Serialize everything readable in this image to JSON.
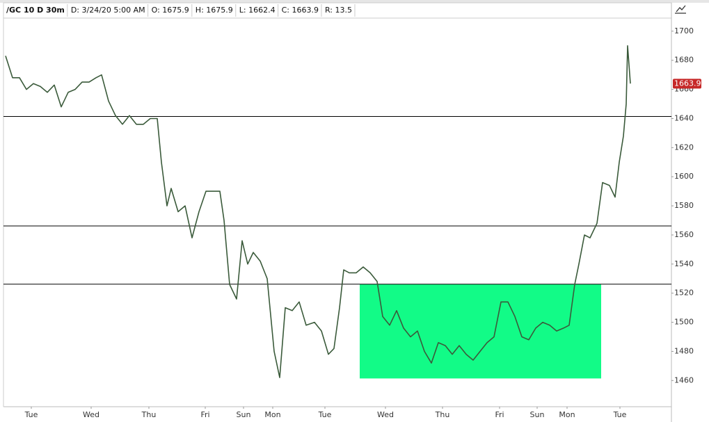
{
  "chart_data": {
    "type": "line",
    "header": [
      "/GC 10 D 30m",
      "D: 3/24/20 5:00 AM",
      "O: 1675.9",
      "H: 1675.9",
      "L: 1662.4",
      "C: 1663.9",
      "R: 13.5"
    ],
    "x": [
      8,
      18,
      28,
      38,
      48,
      58,
      68,
      78,
      88,
      98,
      108,
      118,
      128,
      138,
      146,
      156,
      166,
      176,
      186,
      196,
      206,
      216,
      226,
      232,
      240,
      246,
      256,
      266,
      276,
      286,
      296,
      306,
      316,
      322,
      330,
      340,
      348,
      356,
      364,
      374,
      384,
      394,
      402,
      410,
      420,
      430,
      440,
      452,
      462,
      472,
      480,
      488,
      494,
      502,
      512,
      522,
      532,
      542,
      550,
      560,
      570,
      580,
      590,
      600,
      610,
      620,
      630,
      640,
      650,
      660,
      670,
      680,
      690,
      700,
      710,
      720,
      730,
      740,
      750,
      760,
      770,
      780,
      790,
      800,
      810,
      818,
      826,
      832,
      840,
      848,
      858,
      866,
      876,
      884,
      890,
      896,
      900,
      902,
      906
    ],
    "series": [
      {
        "name": "/GC",
        "color": "#3a5a3a",
        "values": [
          1683,
          1668,
          1668,
          1660,
          1664,
          1662,
          1658,
          1663,
          1648,
          1658,
          1660,
          1665,
          1665,
          1668,
          1670,
          1652,
          1642,
          1636,
          1642,
          1636,
          1636,
          1640,
          1640,
          1610,
          1580,
          1592,
          1576,
          1580,
          1558,
          1576,
          1590,
          1590,
          1590,
          1570,
          1526,
          1516,
          1556,
          1540,
          1548,
          1542,
          1530,
          1480,
          1462,
          1510,
          1508,
          1514,
          1498,
          1500,
          1494,
          1478,
          1482,
          1510,
          1536,
          1534,
          1534,
          1538,
          1534,
          1528,
          1504,
          1498,
          1508,
          1496,
          1490,
          1494,
          1480,
          1472,
          1486,
          1484,
          1478,
          1484,
          1478,
          1474,
          1480,
          1486,
          1490,
          1514,
          1514,
          1504,
          1490,
          1488,
          1496,
          1500,
          1498,
          1494,
          1496,
          1498,
          1526,
          1540,
          1560,
          1558,
          1568,
          1596,
          1594,
          1586,
          1610,
          1628,
          1650,
          1690,
          1664
        ]
      }
    ],
    "xlim": [
      5,
      965
    ],
    "xticks": [
      {
        "value": 45,
        "label": "Tue"
      },
      {
        "value": 131,
        "label": "Wed"
      },
      {
        "value": 214,
        "label": "Thu"
      },
      {
        "value": 295,
        "label": "Fri"
      },
      {
        "value": 350,
        "label": "Sun"
      },
      {
        "value": 392,
        "label": "Mon"
      },
      {
        "value": 467,
        "label": "Tue"
      },
      {
        "value": 554,
        "label": "Wed"
      },
      {
        "value": 636,
        "label": "Thu"
      },
      {
        "value": 718,
        "label": "Fri"
      },
      {
        "value": 772,
        "label": "Sun"
      },
      {
        "value": 815,
        "label": "Mon"
      },
      {
        "value": 891,
        "label": "Tue"
      }
    ],
    "ylim": [
      1442,
      1709
    ],
    "yticks": [
      1460,
      1480,
      1500,
      1520,
      1540,
      1560,
      1580,
      1600,
      1620,
      1640,
      1660,
      1680,
      1700
    ],
    "hlines": [
      1641.4,
      1566.2,
      1526.2
    ],
    "zone": {
      "x": [
        517,
        864
      ],
      "y": [
        1461.4,
        1526.2
      ],
      "color": "#12fb87"
    },
    "last_price": 1663.9
  }
}
